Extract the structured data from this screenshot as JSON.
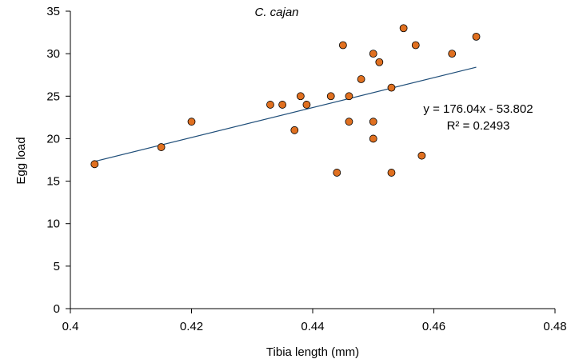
{
  "chart_data": {
    "type": "scatter",
    "title": "C. cajan",
    "xlabel": "Tibia length (mm)",
    "ylabel": "Egg load",
    "xlim": [
      0.4,
      0.48
    ],
    "ylim": [
      0,
      35
    ],
    "xticks": [
      0.4,
      0.42,
      0.44,
      0.46,
      0.48
    ],
    "yticks": [
      0,
      5,
      10,
      15,
      20,
      25,
      30,
      35
    ],
    "xtick_labels": [
      "0.4",
      "0.42",
      "0.44",
      "0.46",
      "0.48"
    ],
    "ytick_labels": [
      "0",
      "5",
      "10",
      "15",
      "20",
      "25",
      "30",
      "35"
    ],
    "grid": false,
    "series": [
      {
        "x": [
          0.404,
          0.415,
          0.42,
          0.433,
          0.435,
          0.437,
          0.438,
          0.439,
          0.443,
          0.444,
          0.445,
          0.446,
          0.446,
          0.448,
          0.45,
          0.45,
          0.45,
          0.451,
          0.453,
          0.453,
          0.455,
          0.457,
          0.458,
          0.463,
          0.467
        ],
        "y": [
          17,
          19,
          22,
          24,
          24,
          21,
          25,
          24,
          25,
          16,
          31,
          22,
          25,
          27,
          30,
          22,
          20,
          29,
          26,
          16,
          33,
          31,
          18,
          30,
          32
        ]
      }
    ],
    "trendline": {
      "x_start": 0.404,
      "x_end": 0.467,
      "slope": 176.04,
      "intercept": -53.802,
      "equation": "y = 176.04x - 53.802",
      "r_squared": "R² = 0.2493"
    },
    "colors": {
      "marker_fill": "#e07020",
      "marker_stroke": "#000000",
      "trendline": "#1f4e79",
      "axis": "#000000"
    }
  }
}
